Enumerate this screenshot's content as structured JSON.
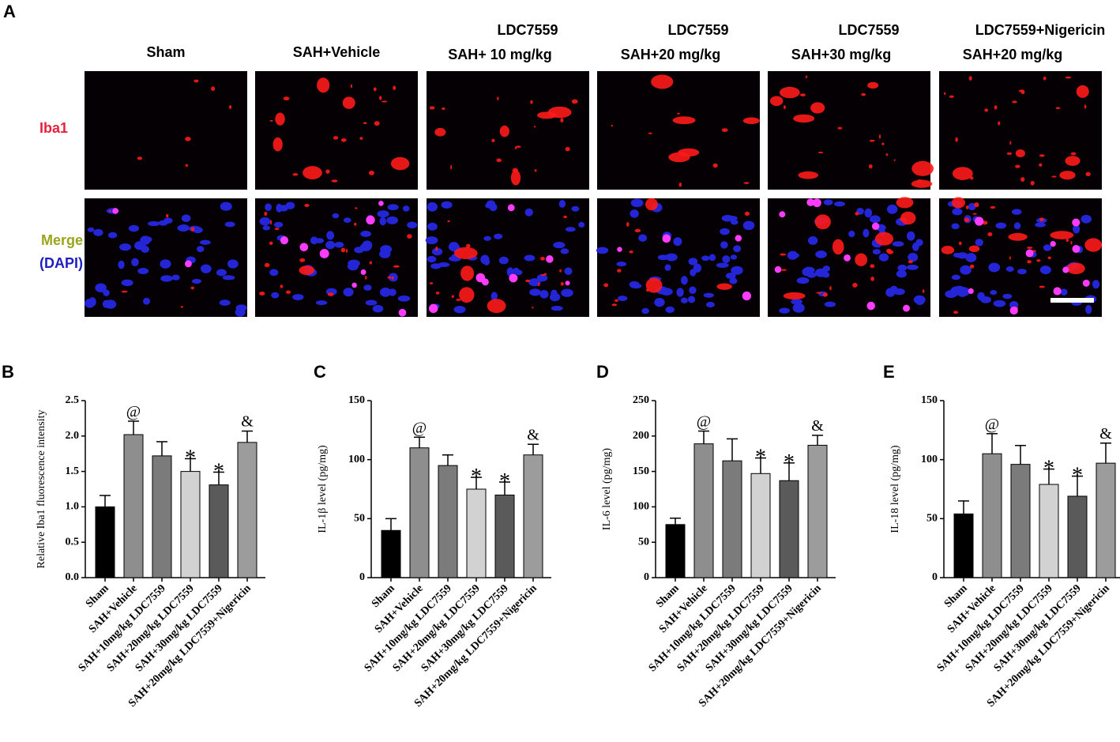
{
  "panel_a": {
    "label": "A",
    "columns": [
      [
        "Sham"
      ],
      [
        "SAH+Vehicle"
      ],
      [
        "LDC7559",
        "SAH+ 10 mg/kg"
      ],
      [
        "LDC7559",
        "SAH+20 mg/kg"
      ],
      [
        "LDC7559",
        "SAH+30 mg/kg"
      ],
      [
        "LDC7559+Nigericin",
        "SAH+20 mg/kg"
      ]
    ],
    "rows": {
      "iba1": "Iba1",
      "merge": "Merge",
      "dapi": "(DAPI)"
    }
  },
  "chart_data": [
    {
      "type": "bar",
      "label": "B",
      "ylabel": "Relative Iba1 fluorescence intensity",
      "categories": [
        "Sham",
        "SAH+Vehicle",
        "SAH+10mg/kg LDC7559",
        "SAH+20mg/kg LDC7559",
        "SAH+30mg/kg LDC7559",
        "SAH+20mg/kg LDC7559+Nigericin"
      ],
      "values": [
        1.0,
        2.02,
        1.72,
        1.5,
        1.31,
        1.91
      ],
      "errors": [
        0.16,
        0.19,
        0.2,
        0.18,
        0.18,
        0.16
      ],
      "annotations": [
        null,
        "@",
        null,
        "*",
        "*",
        "&"
      ],
      "colors": [
        "#000000",
        "#8e8e8e",
        "#7b7b7b",
        "#d2d2d2",
        "#5a5a5a",
        "#9c9c9c"
      ],
      "ylim": [
        0,
        2.5
      ],
      "yticks": [
        {
          "value": 0,
          "label": "0.0"
        },
        0.5,
        {
          "value": 1,
          "label": "1.0"
        },
        1.5,
        {
          "value": 2,
          "label": "2.0"
        },
        2.5
      ]
    },
    {
      "type": "bar",
      "label": "C",
      "ylabel": "IL-1β level (pg/mg)",
      "categories": [
        "Sham",
        "SAH+Vehicle",
        "SAH+10mg/kg LDC7559",
        "SAH+20mg/kg LDC7559",
        "SAH+30mg/kg LDC7559",
        "SAH+20mg/kg LDC7559+Nigericin"
      ],
      "values": [
        40,
        110,
        95,
        75,
        70,
        104
      ],
      "errors": [
        10,
        9,
        9,
        10,
        11,
        9
      ],
      "annotations": [
        null,
        "@",
        null,
        "*",
        "*",
        "&"
      ],
      "colors": [
        "#000000",
        "#8e8e8e",
        "#7b7b7b",
        "#d2d2d2",
        "#5a5a5a",
        "#9c9c9c"
      ],
      "ylim": [
        0,
        150
      ],
      "yticks": [
        0,
        50,
        100,
        150
      ]
    },
    {
      "type": "bar",
      "label": "D",
      "ylabel": "IL-6 level (pg/mg)",
      "categories": [
        "Sham",
        "SAH+Vehicle",
        "SAH+10mg/kg LDC7559",
        "SAH+20mg/kg LDC7559",
        "SAH+30mg/kg LDC7559",
        "SAH+20mg/kg LDC7559+Nigericin"
      ],
      "values": [
        75,
        189,
        165,
        147,
        137,
        187
      ],
      "errors": [
        9,
        18,
        31,
        22,
        25,
        14
      ],
      "annotations": [
        null,
        "@",
        null,
        "*",
        "*",
        "&"
      ],
      "colors": [
        "#000000",
        "#8e8e8e",
        "#7b7b7b",
        "#d2d2d2",
        "#5a5a5a",
        "#9c9c9c"
      ],
      "ylim": [
        0,
        250
      ],
      "yticks": [
        0,
        50,
        100,
        150,
        200,
        250
      ]
    },
    {
      "type": "bar",
      "label": "E",
      "ylabel": "IL-18 level (pg/mg)",
      "categories": [
        "Sham",
        "SAH+Vehicle",
        "SAH+10mg/kg LDC7559",
        "SAH+20mg/kg LDC7559",
        "SAH+30mg/kg LDC7559",
        "SAH+20mg/kg LDC7559+Nigericin"
      ],
      "values": [
        54,
        105,
        96,
        79,
        69,
        97
      ],
      "errors": [
        11,
        17,
        16,
        13,
        17,
        17
      ],
      "annotations": [
        null,
        "@",
        null,
        "*",
        "*",
        "&"
      ],
      "colors": [
        "#000000",
        "#8e8e8e",
        "#7b7b7b",
        "#d2d2d2",
        "#5a5a5a",
        "#9c9c9c"
      ],
      "ylim": [
        0,
        150
      ],
      "yticks": [
        0,
        50,
        100,
        150
      ]
    }
  ]
}
